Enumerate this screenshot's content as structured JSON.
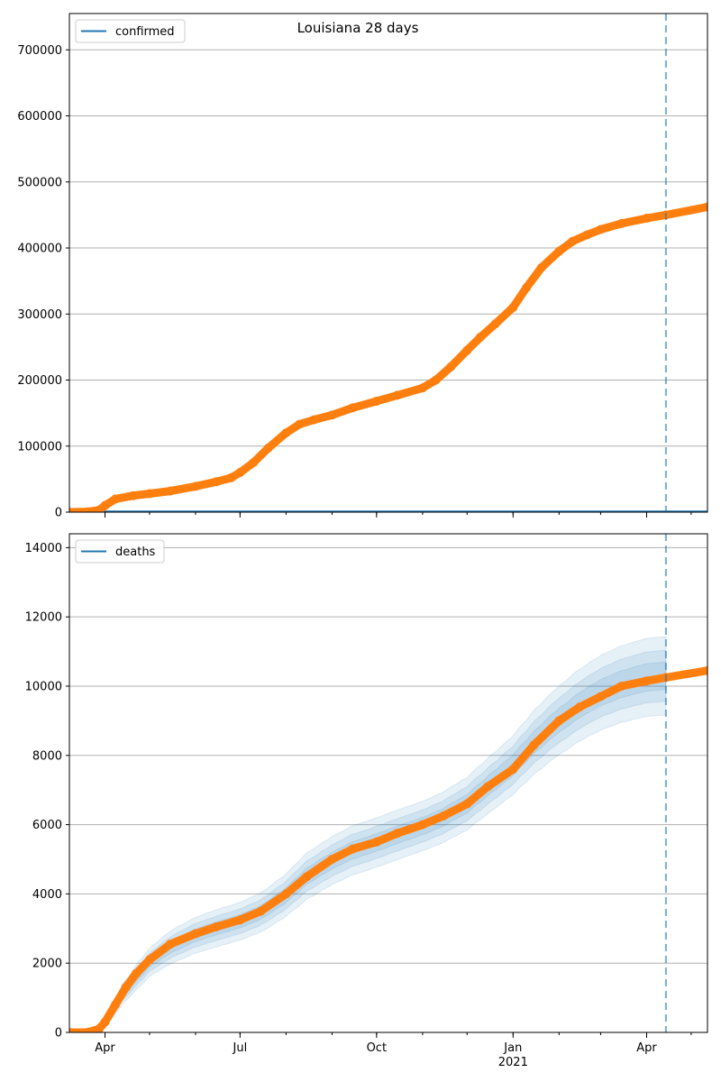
{
  "title": "Louisiana 28 days",
  "colors": {
    "observed": "#ff7f0e",
    "model": "#1f77b4",
    "grid": "#b0b0b0",
    "axis": "#000000"
  },
  "x_axis": {
    "range": [
      "2020-03-08",
      "2021-05-12"
    ],
    "major_ticks": [
      {
        "date": "2020-04-01",
        "label": "Apr"
      },
      {
        "date": "2020-07-01",
        "label": "Jul"
      },
      {
        "date": "2020-10-01",
        "label": "Oct"
      },
      {
        "date": "2021-01-01",
        "label": "Jan"
      },
      {
        "date": "2021-04-01",
        "label": "Apr"
      }
    ],
    "year_label": {
      "date": "2021-01-01",
      "label": "2021"
    },
    "forecast_start": "2021-04-14"
  },
  "chart_data": [
    {
      "type": "line",
      "name": "confirmed-panel",
      "legend": "confirmed",
      "legend_position": "top-left",
      "grid": "y",
      "ylim": [
        0,
        755000
      ],
      "yticks": [
        0,
        100000,
        200000,
        300000,
        400000,
        500000,
        600000,
        700000
      ],
      "observed": [
        [
          "2020-03-08",
          0
        ],
        [
          "2020-03-20",
          500
        ],
        [
          "2020-03-28",
          3000
        ],
        [
          "2020-04-01",
          10000
        ],
        [
          "2020-04-08",
          20000
        ],
        [
          "2020-04-20",
          25000
        ],
        [
          "2020-05-01",
          28000
        ],
        [
          "2020-05-15",
          32000
        ],
        [
          "2020-06-01",
          39000
        ],
        [
          "2020-06-15",
          46000
        ],
        [
          "2020-06-25",
          52000
        ],
        [
          "2020-07-01",
          60000
        ],
        [
          "2020-07-10",
          75000
        ],
        [
          "2020-07-20",
          97000
        ],
        [
          "2020-08-01",
          120000
        ],
        [
          "2020-08-10",
          133000
        ],
        [
          "2020-08-20",
          140000
        ],
        [
          "2020-09-01",
          147000
        ],
        [
          "2020-09-15",
          158000
        ],
        [
          "2020-10-01",
          168000
        ],
        [
          "2020-10-15",
          177000
        ],
        [
          "2020-11-01",
          188000
        ],
        [
          "2020-11-10",
          200000
        ],
        [
          "2020-11-20",
          220000
        ],
        [
          "2020-12-01",
          245000
        ],
        [
          "2020-12-10",
          265000
        ],
        [
          "2020-12-20",
          285000
        ],
        [
          "2021-01-01",
          310000
        ],
        [
          "2021-01-10",
          340000
        ],
        [
          "2021-01-20",
          370000
        ],
        [
          "2021-02-01",
          395000
        ],
        [
          "2021-02-10",
          410000
        ],
        [
          "2021-02-20",
          420000
        ],
        [
          "2021-03-01",
          428000
        ],
        [
          "2021-03-15",
          437000
        ],
        [
          "2021-04-01",
          445000
        ],
        [
          "2021-04-14",
          450000
        ],
        [
          "2021-05-12",
          462000
        ]
      ],
      "model": []
    },
    {
      "type": "line",
      "name": "deaths-panel",
      "legend": "deaths",
      "legend_position": "top-left",
      "grid": "y",
      "ylim": [
        0,
        14400
      ],
      "yticks": [
        0,
        2000,
        4000,
        6000,
        8000,
        10000,
        12000,
        14000
      ],
      "observed": [
        [
          "2020-03-08",
          0
        ],
        [
          "2020-03-20",
          0
        ],
        [
          "2020-03-28",
          100
        ],
        [
          "2020-04-01",
          300
        ],
        [
          "2020-04-08",
          800
        ],
        [
          "2020-04-15",
          1300
        ],
        [
          "2020-04-22",
          1700
        ],
        [
          "2020-05-01",
          2100
        ],
        [
          "2020-05-15",
          2550
        ],
        [
          "2020-06-01",
          2850
        ],
        [
          "2020-06-15",
          3050
        ],
        [
          "2020-07-01",
          3250
        ],
        [
          "2020-07-15",
          3500
        ],
        [
          "2020-08-01",
          4000
        ],
        [
          "2020-08-15",
          4500
        ],
        [
          "2020-09-01",
          5000
        ],
        [
          "2020-09-15",
          5300
        ],
        [
          "2020-10-01",
          5500
        ],
        [
          "2020-10-15",
          5750
        ],
        [
          "2020-11-01",
          6000
        ],
        [
          "2020-11-15",
          6250
        ],
        [
          "2020-12-01",
          6600
        ],
        [
          "2020-12-15",
          7100
        ],
        [
          "2021-01-01",
          7600
        ],
        [
          "2021-01-15",
          8300
        ],
        [
          "2021-02-01",
          9000
        ],
        [
          "2021-02-15",
          9400
        ],
        [
          "2021-03-01",
          9700
        ],
        [
          "2021-03-15",
          10000
        ],
        [
          "2021-04-01",
          10150
        ],
        [
          "2021-04-14",
          10250
        ],
        [
          "2021-05-12",
          10450
        ]
      ],
      "model": [
        [
          "2020-03-08",
          0
        ],
        [
          "2020-03-25",
          50
        ],
        [
          "2020-04-01",
          250
        ],
        [
          "2020-04-15",
          1200
        ],
        [
          "2020-05-01",
          2000
        ],
        [
          "2020-05-15",
          2450
        ],
        [
          "2020-06-01",
          2800
        ],
        [
          "2020-06-15",
          3000
        ],
        [
          "2020-07-01",
          3200
        ],
        [
          "2020-07-15",
          3450
        ],
        [
          "2020-08-01",
          3950
        ],
        [
          "2020-08-15",
          4500
        ],
        [
          "2020-09-01",
          4950
        ],
        [
          "2020-09-15",
          5250
        ],
        [
          "2020-10-01",
          5480
        ],
        [
          "2020-10-15",
          5700
        ],
        [
          "2020-11-01",
          5950
        ],
        [
          "2020-11-15",
          6200
        ],
        [
          "2020-12-01",
          6600
        ],
        [
          "2020-12-15",
          7100
        ],
        [
          "2021-01-01",
          7700
        ],
        [
          "2021-01-15",
          8350
        ],
        [
          "2021-02-01",
          9000
        ],
        [
          "2021-02-15",
          9450
        ],
        [
          "2021-03-01",
          9800
        ],
        [
          "2021-03-15",
          10050
        ],
        [
          "2021-04-01",
          10250
        ],
        [
          "2021-04-14",
          10300
        ]
      ],
      "band_rel_width": [
        [
          "2020-03-08",
          0.0
        ],
        [
          "2020-04-01",
          0.35
        ],
        [
          "2020-04-15",
          0.25
        ],
        [
          "2020-05-01",
          0.2
        ],
        [
          "2020-07-01",
          0.17
        ],
        [
          "2020-09-01",
          0.14
        ],
        [
          "2020-11-01",
          0.12
        ],
        [
          "2021-01-01",
          0.11
        ],
        [
          "2021-04-14",
          0.11
        ]
      ]
    }
  ]
}
